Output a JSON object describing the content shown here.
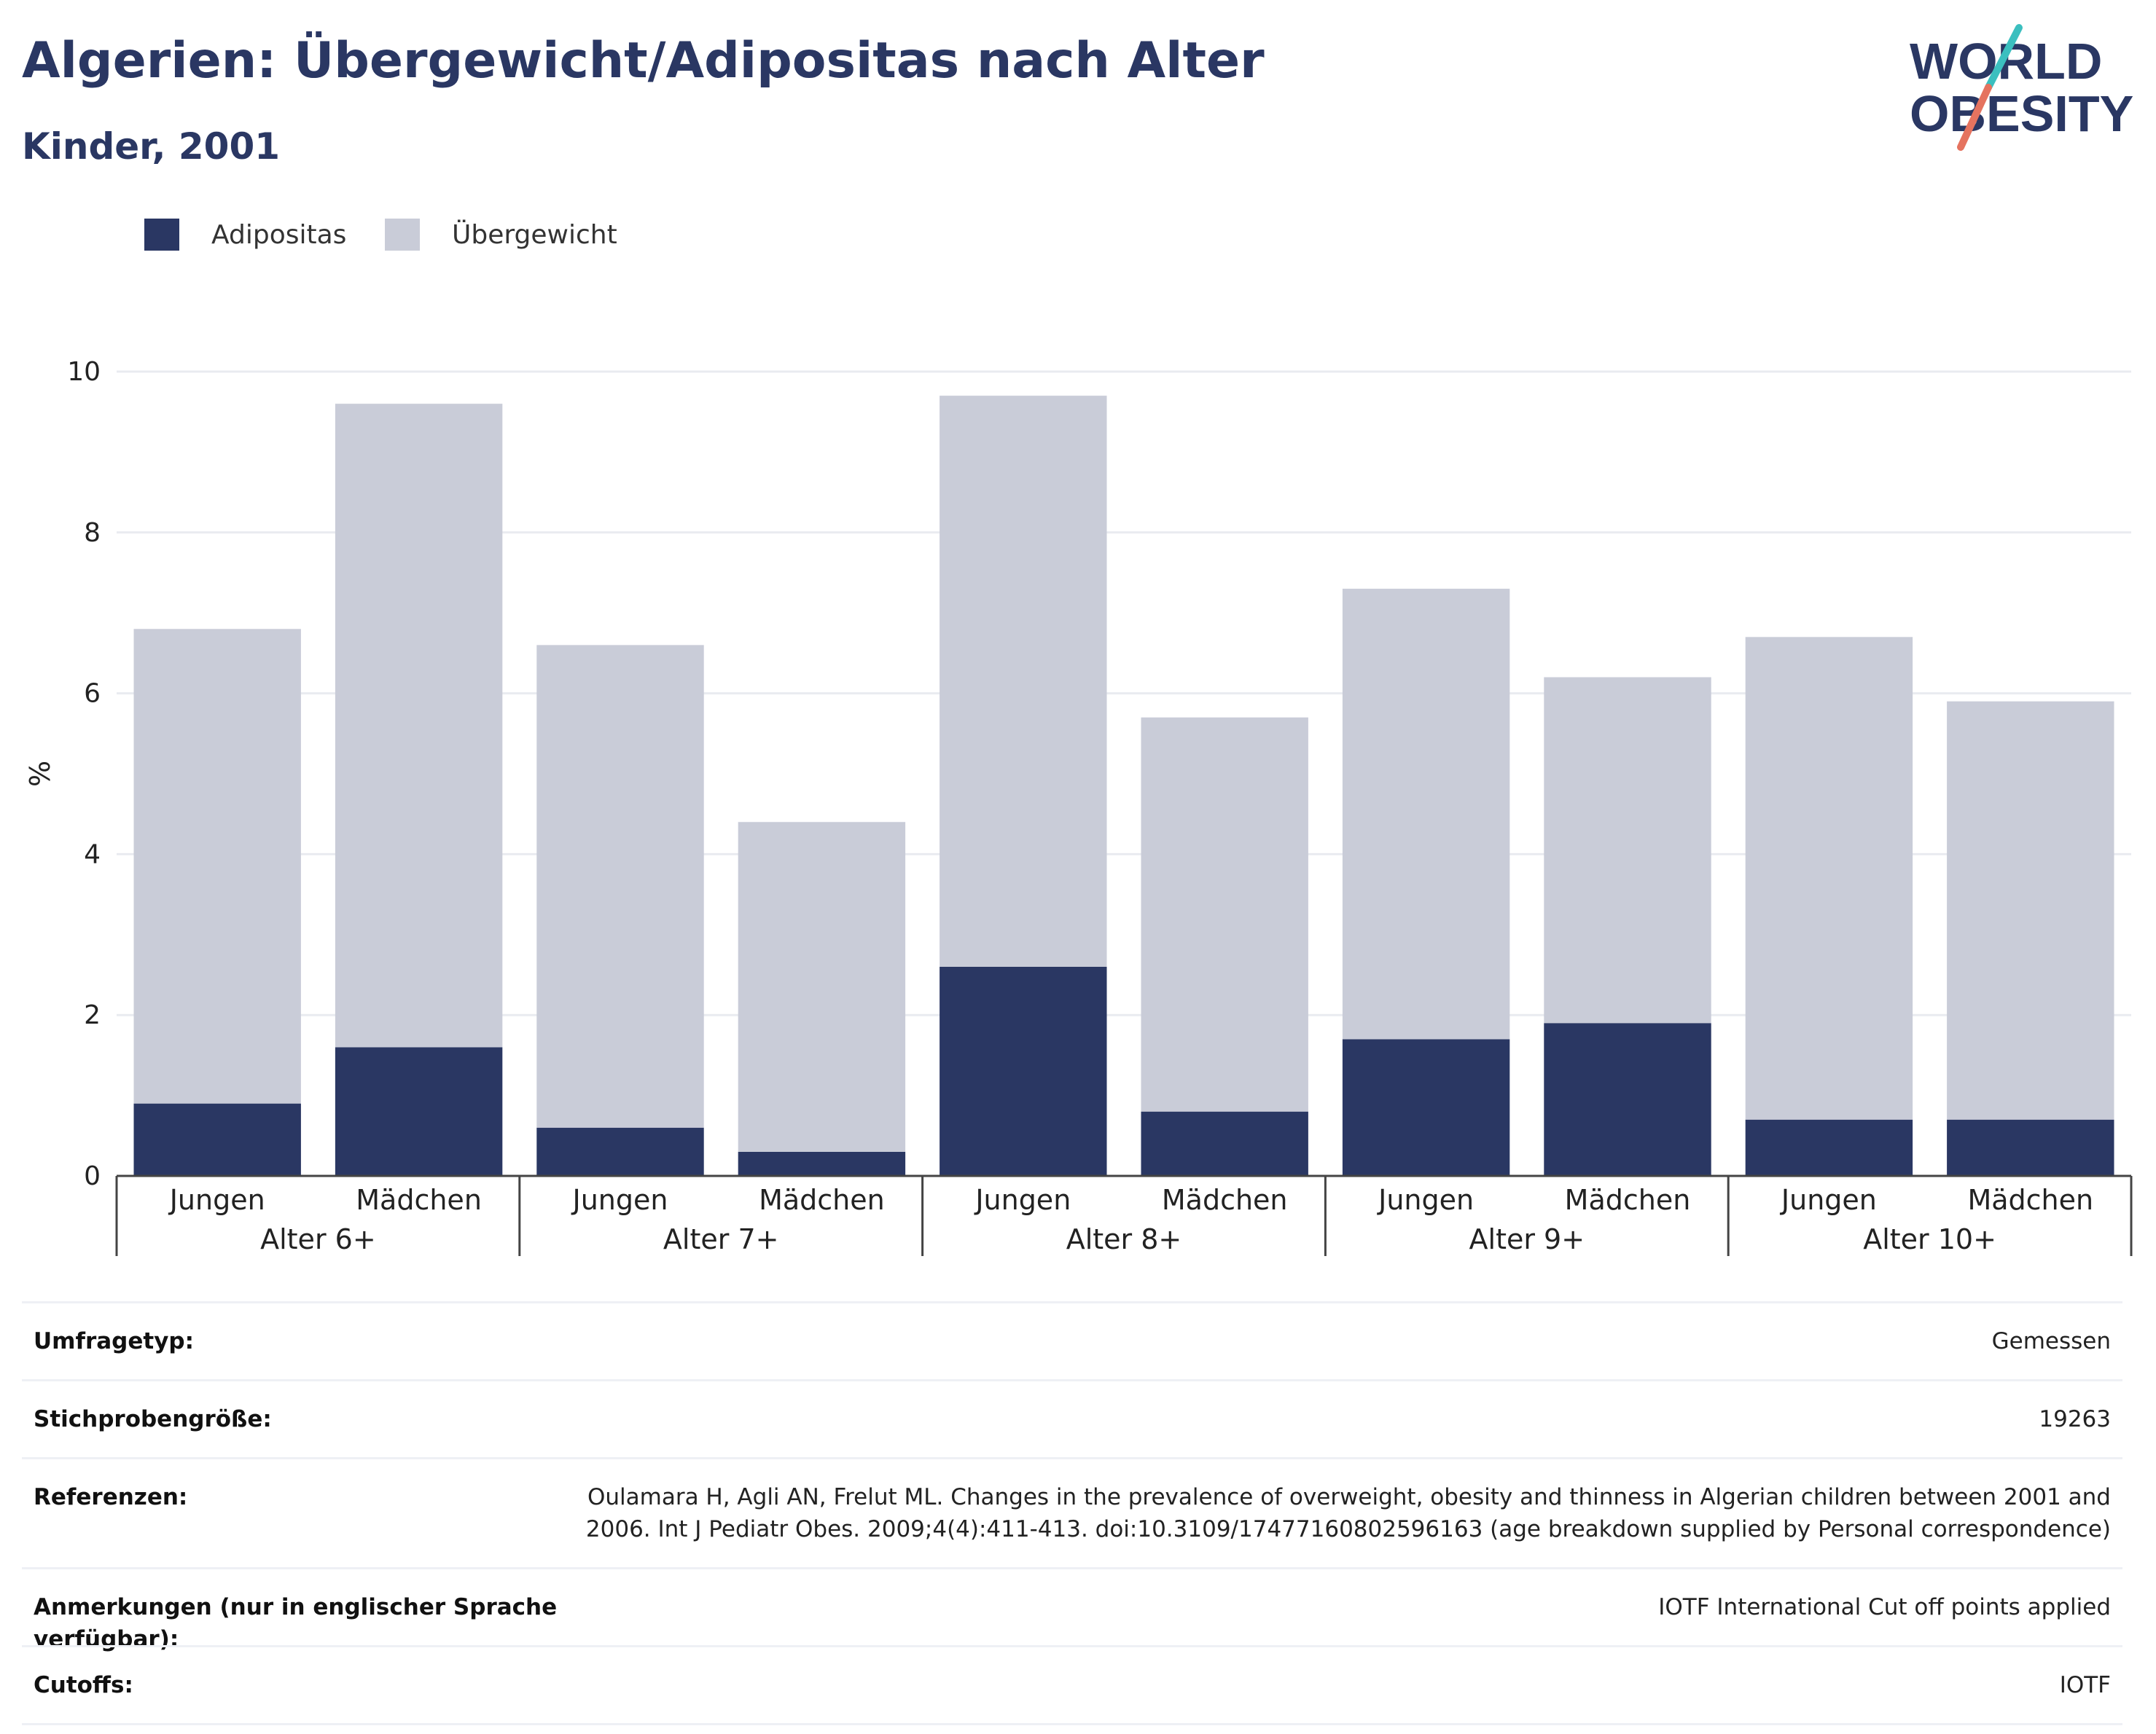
{
  "header": {
    "title": "Algerien: Übergewicht/Adipositas nach Alter",
    "subtitle": "Kinder, 2001"
  },
  "logo": {
    "line1": "WORLD",
    "line2": "OBESITY",
    "colors": {
      "text": "#2a3763",
      "slash_top": "#3bbfbf",
      "slash_bottom": "#e5735f"
    }
  },
  "colors": {
    "adipositas": "#2a3763",
    "uebergewicht": "#c9ccd8",
    "grid": "#e9ebf0",
    "axis": "#444444"
  },
  "chart_data": {
    "type": "bar",
    "stacked": true,
    "ylabel": "%",
    "ylim": [
      0,
      10
    ],
    "yticks": [
      0,
      2,
      4,
      6,
      8,
      10
    ],
    "grid": true,
    "legend_position": "top-left",
    "groups": [
      "Alter 6+",
      "Alter 7+",
      "Alter 8+",
      "Alter 9+",
      "Alter 10+"
    ],
    "categories": [
      "Jungen",
      "Mädchen",
      "Jungen",
      "Mädchen",
      "Jungen",
      "Mädchen",
      "Jungen",
      "Mädchen",
      "Jungen",
      "Mädchen"
    ],
    "series": [
      {
        "name": "Adipositas",
        "values": [
          0.9,
          1.6,
          0.6,
          0.3,
          2.6,
          0.8,
          1.7,
          1.9,
          0.7,
          0.7
        ]
      },
      {
        "name": "Übergewicht",
        "values": [
          5.9,
          8.0,
          6.0,
          4.1,
          7.1,
          4.9,
          5.6,
          4.3,
          6.0,
          5.2
        ]
      }
    ]
  },
  "info_table": [
    {
      "label": "Umfragetyp:",
      "value": "Gemessen"
    },
    {
      "label": "Stichprobengröße:",
      "value": "19263"
    },
    {
      "label": "Referenzen:",
      "value": "Oulamara H, Agli AN, Frelut ML. Changes in the prevalence of overweight, obesity and thinness in Algerian children between 2001 and 2006. Int J Pediatr Obes. 2009;4(4):411-413. doi:10.3109/17477160802596163 (age breakdown supplied by Personal correspondence)"
    },
    {
      "label": "Anmerkungen (nur in englischer Sprache verfügbar):",
      "value": "IOTF International Cut off points applied"
    },
    {
      "label": "Cutoffs:",
      "value": "IOTF"
    }
  ]
}
